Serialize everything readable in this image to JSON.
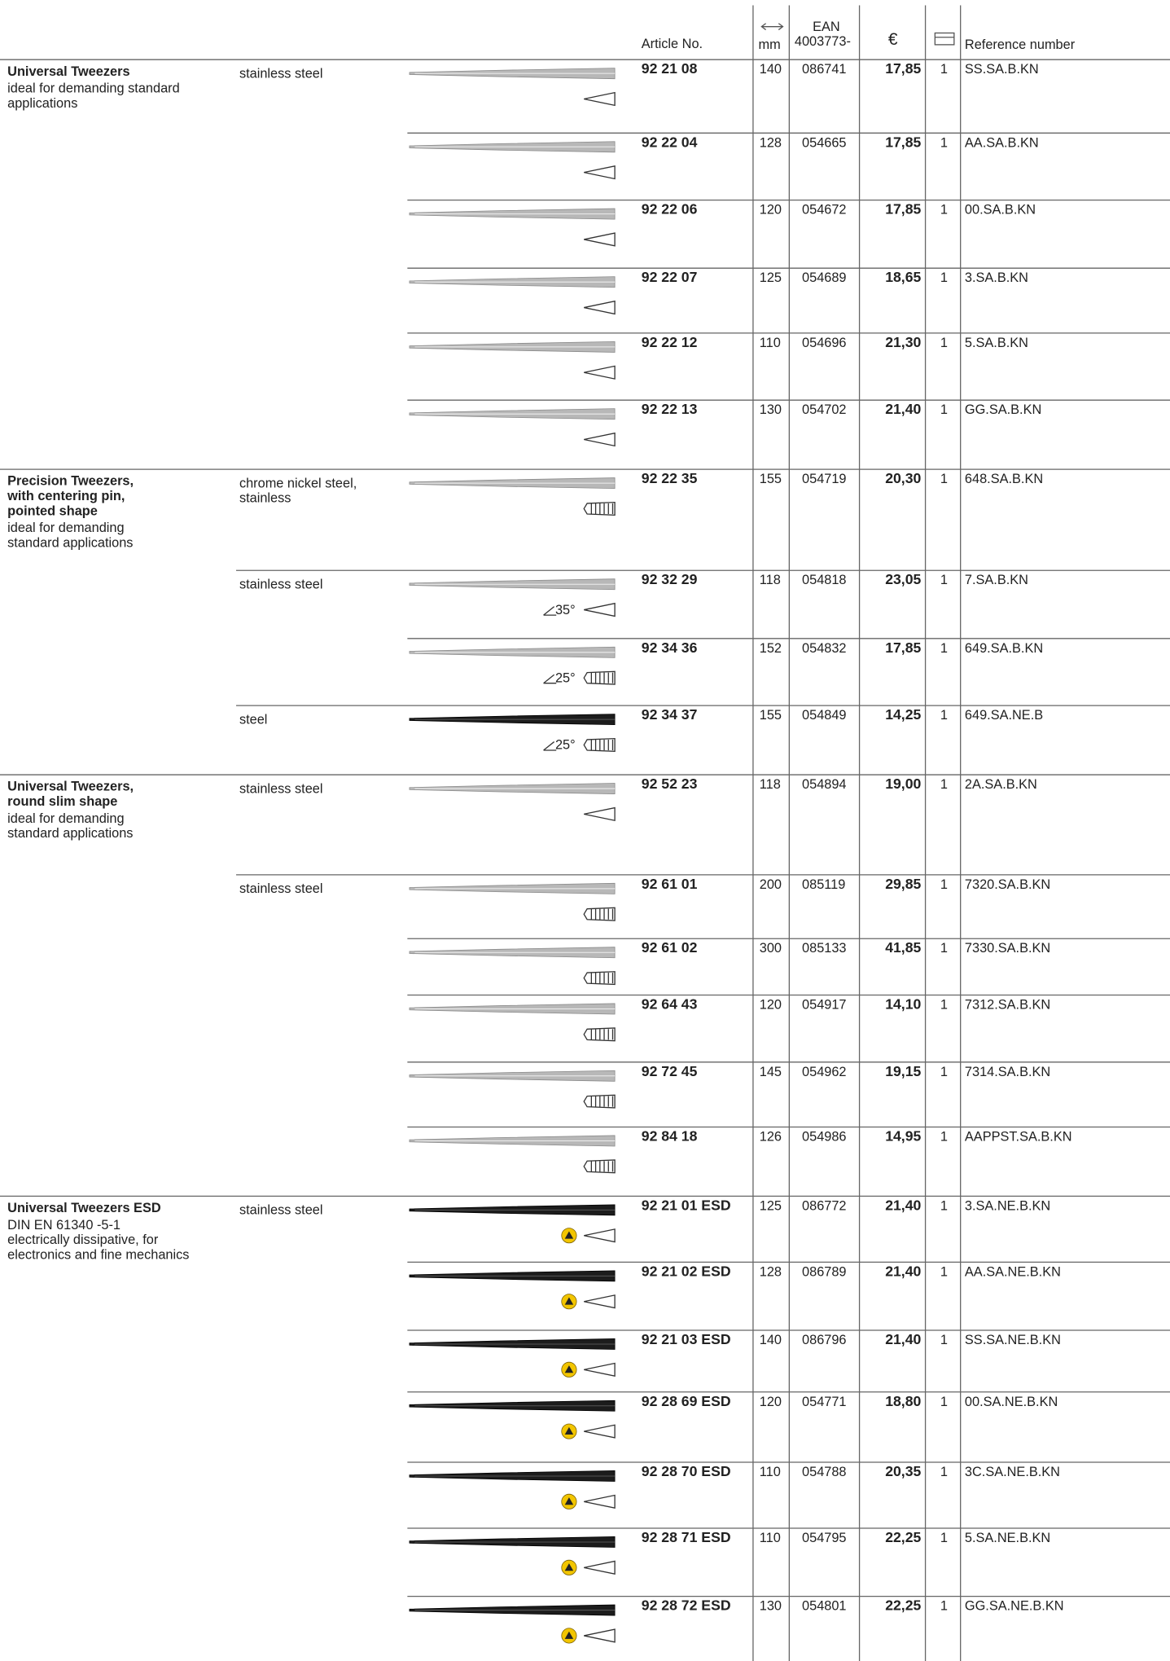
{
  "header": {
    "article_no": "Article No.",
    "mm": "mm",
    "ean": [
      "EAN",
      "4003773-"
    ],
    "currency": "€",
    "reference": "Reference number"
  },
  "groups": [
    {
      "title": [
        "Universal Tweezers"
      ],
      "description": [
        "ideal for demanding standard",
        "applications"
      ],
      "rows": [
        {
          "material": [
            "stainless steel"
          ],
          "article": "92 21 08",
          "mm": 140,
          "ean": "086741",
          "price": "17,85",
          "qty": 1,
          "ref": "SS.SA.B.KN",
          "grip": "smooth",
          "finish": "silver"
        },
        {
          "article": "92 22 04",
          "mm": 128,
          "ean": "054665",
          "price": "17,85",
          "qty": 1,
          "ref": "AA.SA.B.KN",
          "grip": "smooth",
          "finish": "silver"
        },
        {
          "article": "92 22 06",
          "mm": 120,
          "ean": "054672",
          "price": "17,85",
          "qty": 1,
          "ref": "00.SA.B.KN",
          "grip": "smooth",
          "finish": "silver"
        },
        {
          "article": "92 22 07",
          "mm": 125,
          "ean": "054689",
          "price": "18,65",
          "qty": 1,
          "ref": "3.SA.B.KN",
          "grip": "smooth",
          "finish": "silver"
        },
        {
          "article": "92 22 12",
          "mm": 110,
          "ean": "054696",
          "price": "21,30",
          "qty": 1,
          "ref": "5.SA.B.KN",
          "grip": "smooth",
          "finish": "silver"
        },
        {
          "article": "92 22 13",
          "mm": 130,
          "ean": "054702",
          "price": "21,40",
          "qty": 1,
          "ref": "GG.SA.B.KN",
          "grip": "smooth",
          "finish": "silver"
        }
      ]
    },
    {
      "title": [
        "Precision Tweezers,",
        "with centering pin,",
        "pointed shape"
      ],
      "description": [
        "ideal for demanding",
        "standard applications"
      ],
      "rows": [
        {
          "material": [
            "chrome nickel steel,",
            "stainless"
          ],
          "article": "92 22 35",
          "mm": 155,
          "ean": "054719",
          "price": "20,30",
          "qty": 1,
          "ref": "648.SA.B.KN",
          "grip": "ribbed",
          "finish": "silver"
        },
        {
          "material": [
            "stainless steel"
          ],
          "article": "92 32 29",
          "mm": 118,
          "ean": "054818",
          "price": "23,05",
          "qty": 1,
          "ref": "7.SA.B.KN",
          "grip": "smooth",
          "finish": "silver",
          "angle": "35°"
        },
        {
          "article": "92 34 36",
          "mm": 152,
          "ean": "054832",
          "price": "17,85",
          "qty": 1,
          "ref": "649.SA.B.KN",
          "grip": "ribbed",
          "finish": "silver",
          "angle": "25°"
        },
        {
          "material": [
            "steel"
          ],
          "article": "92 34 37",
          "mm": 155,
          "ean": "054849",
          "price": "14,25",
          "qty": 1,
          "ref": "649.SA.NE.B",
          "grip": "ribbed",
          "finish": "black",
          "angle": "25°"
        }
      ]
    },
    {
      "title": [
        "Universal Tweezers,",
        "round slim shape"
      ],
      "description": [
        "ideal for demanding",
        "standard applications"
      ],
      "rows": [
        {
          "material": [
            "stainless steel"
          ],
          "article": "92 52 23",
          "mm": 118,
          "ean": "054894",
          "price": "19,00",
          "qty": 1,
          "ref": "2A.SA.B.KN",
          "grip": "smooth",
          "finish": "silver"
        },
        {
          "material": [
            "stainless steel"
          ],
          "article": "92 61 01",
          "mm": 200,
          "ean": "085119",
          "price": "29,85",
          "qty": 1,
          "ref": "7320.SA.B.KN",
          "grip": "ribbed",
          "finish": "silver"
        },
        {
          "article": "92 61 02",
          "mm": 300,
          "ean": "085133",
          "price": "41,85",
          "qty": 1,
          "ref": "7330.SA.B.KN",
          "grip": "ribbed",
          "finish": "silver"
        },
        {
          "article": "92 64 43",
          "mm": 120,
          "ean": "054917",
          "price": "14,10",
          "qty": 1,
          "ref": "7312.SA.B.KN",
          "grip": "ribbed",
          "finish": "silver"
        },
        {
          "article": "92 72 45",
          "mm": 145,
          "ean": "054962",
          "price": "19,15",
          "qty": 1,
          "ref": "7314.SA.B.KN",
          "grip": "ribbed",
          "finish": "silver"
        },
        {
          "article": "92 84 18",
          "mm": 126,
          "ean": "054986",
          "price": "14,95",
          "qty": 1,
          "ref": "AAPPST.SA.B.KN",
          "grip": "ribbed",
          "finish": "silver"
        }
      ]
    },
    {
      "title": [
        "Universal Tweezers ESD"
      ],
      "description": [
        "DIN EN 61340 -5-1",
        "electrically dissipative, for",
        "electronics and fine mechanics"
      ],
      "rows": [
        {
          "material": [
            "stainless steel"
          ],
          "article": "92 21 01 ESD",
          "mm": 125,
          "ean": "086772",
          "price": "21,40",
          "qty": 1,
          "ref": "3.SA.NE.B.KN",
          "grip": "smooth",
          "finish": "black",
          "esd": true
        },
        {
          "article": "92 21 02 ESD",
          "mm": 128,
          "ean": "086789",
          "price": "21,40",
          "qty": 1,
          "ref": "AA.SA.NE.B.KN",
          "grip": "smooth",
          "finish": "black",
          "esd": true
        },
        {
          "article": "92 21 03 ESD",
          "mm": 140,
          "ean": "086796",
          "price": "21,40",
          "qty": 1,
          "ref": "SS.SA.NE.B.KN",
          "grip": "smooth",
          "finish": "black",
          "esd": true
        },
        {
          "article": "92 28 69 ESD",
          "mm": 120,
          "ean": "054771",
          "price": "18,80",
          "qty": 1,
          "ref": "00.SA.NE.B.KN",
          "grip": "smooth",
          "finish": "black",
          "esd": true
        },
        {
          "article": "92 28 70 ESD",
          "mm": 110,
          "ean": "054788",
          "price": "20,35",
          "qty": 1,
          "ref": "3C.SA.NE.B.KN",
          "grip": "smooth",
          "finish": "black",
          "esd": true
        },
        {
          "article": "92 28 71 ESD",
          "mm": 110,
          "ean": "054795",
          "price": "22,25",
          "qty": 1,
          "ref": "5.SA.NE.B.KN",
          "grip": "smooth",
          "finish": "black",
          "esd": true
        },
        {
          "article": "92 28 72 ESD",
          "mm": 130,
          "ean": "054801",
          "price": "22,25",
          "qty": 1,
          "ref": "GG.SA.NE.B.KN",
          "grip": "smooth",
          "finish": "black",
          "esd": true
        }
      ]
    }
  ]
}
